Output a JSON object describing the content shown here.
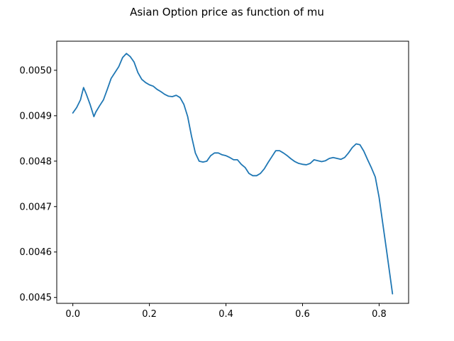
{
  "chart_data": {
    "type": "line",
    "title": "Asian Option price as function of mu",
    "xlabel": "",
    "ylabel": "",
    "xlim": [
      -0.042,
      0.877
    ],
    "ylim": [
      0.004487,
      0.005064
    ],
    "x_ticks": [
      0.0,
      0.2,
      0.4,
      0.6,
      0.8
    ],
    "x_tick_labels": [
      "0.0",
      "0.2",
      "0.4",
      "0.6",
      "0.8"
    ],
    "y_ticks": [
      0.0045,
      0.0046,
      0.0047,
      0.0048,
      0.0049,
      0.005
    ],
    "y_tick_labels": [
      "0.0045",
      "0.0046",
      "0.0047",
      "0.0048",
      "0.0049",
      "0.0050"
    ],
    "grid": false,
    "legend": "none",
    "series": [
      {
        "color": "#1f77b4",
        "x": [
          0.0,
          0.01,
          0.02,
          0.028,
          0.035,
          0.045,
          0.055,
          0.06,
          0.07,
          0.08,
          0.09,
          0.1,
          0.11,
          0.12,
          0.13,
          0.14,
          0.15,
          0.16,
          0.17,
          0.18,
          0.19,
          0.2,
          0.21,
          0.22,
          0.23,
          0.24,
          0.25,
          0.26,
          0.27,
          0.28,
          0.29,
          0.3,
          0.31,
          0.32,
          0.33,
          0.34,
          0.35,
          0.36,
          0.37,
          0.38,
          0.39,
          0.4,
          0.41,
          0.42,
          0.43,
          0.44,
          0.45,
          0.46,
          0.47,
          0.48,
          0.49,
          0.5,
          0.51,
          0.52,
          0.53,
          0.54,
          0.55,
          0.56,
          0.57,
          0.58,
          0.59,
          0.6,
          0.61,
          0.62,
          0.63,
          0.64,
          0.65,
          0.66,
          0.67,
          0.68,
          0.69,
          0.7,
          0.71,
          0.72,
          0.73,
          0.74,
          0.75,
          0.76,
          0.77,
          0.78,
          0.79,
          0.8,
          0.81,
          0.82,
          0.835
        ],
        "values": [
          0.004906,
          0.004918,
          0.004935,
          0.004962,
          0.004948,
          0.004925,
          0.004898,
          0.004908,
          0.004922,
          0.004935,
          0.004958,
          0.004982,
          0.004995,
          0.005008,
          0.005028,
          0.005037,
          0.00503,
          0.005018,
          0.004995,
          0.00498,
          0.004973,
          0.004968,
          0.004965,
          0.004958,
          0.004953,
          0.004947,
          0.004943,
          0.004942,
          0.004945,
          0.00494,
          0.004925,
          0.004898,
          0.004855,
          0.004818,
          0.0048,
          0.004798,
          0.0048,
          0.004812,
          0.004818,
          0.004818,
          0.004814,
          0.004812,
          0.004808,
          0.004803,
          0.004803,
          0.004793,
          0.004786,
          0.004773,
          0.004768,
          0.004768,
          0.004773,
          0.004783,
          0.004797,
          0.00481,
          0.004823,
          0.004823,
          0.004818,
          0.004812,
          0.004805,
          0.004799,
          0.004795,
          0.004793,
          0.004792,
          0.004795,
          0.004803,
          0.004801,
          0.004799,
          0.004801,
          0.004806,
          0.004808,
          0.004806,
          0.004804,
          0.004808,
          0.004818,
          0.00483,
          0.004838,
          0.004836,
          0.004822,
          0.004803,
          0.004785,
          0.004765,
          0.00472,
          0.00466,
          0.0046,
          0.004508
        ]
      }
    ]
  }
}
